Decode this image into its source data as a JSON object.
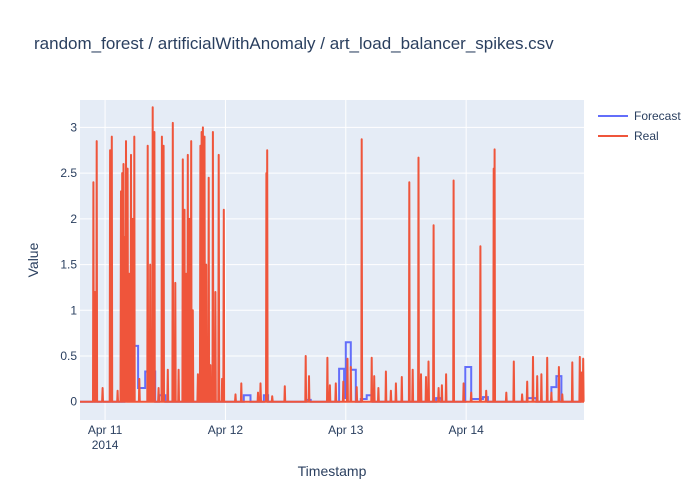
{
  "chart_data": {
    "type": "line",
    "title": "random_forest / artificialWithAnomaly / art_load_balancer_spikes.csv",
    "xlabel": "Timestamp",
    "ylabel": "Value",
    "xlim": [
      "2014-04-10T19:00",
      "2014-04-14T23:30"
    ],
    "ylim": [
      -0.2,
      3.3
    ],
    "x_ticks": [
      {
        "value": "2014-04-11T00:00",
        "label": "Apr 11",
        "sublabel": "2014"
      },
      {
        "value": "2014-04-12T00:00",
        "label": "Apr 12",
        "sublabel": ""
      },
      {
        "value": "2014-04-13T00:00",
        "label": "Apr 13",
        "sublabel": ""
      },
      {
        "value": "2014-04-14T00:00",
        "label": "Apr 14",
        "sublabel": ""
      }
    ],
    "y_ticks": [
      0,
      0.5,
      1,
      1.5,
      2,
      2.5,
      3
    ],
    "grid": true,
    "legend_position": "top-right",
    "colors": {
      "forecast": "#636efa",
      "real": "#ef553b",
      "plot_bg": "#e5ecf6",
      "grid": "#ffffff",
      "text": "#2a3f5f"
    },
    "series": [
      {
        "name": "Forecast",
        "color": "#636efa",
        "points": [
          [
            "2014-04-10T19:00",
            0
          ],
          [
            "2014-04-11T03:50",
            0
          ],
          [
            "2014-04-11T03:50",
            0.19
          ],
          [
            "2014-04-11T04:50",
            0.19
          ],
          [
            "2014-04-11T04:50",
            0.06
          ],
          [
            "2014-04-11T05:50",
            0.06
          ],
          [
            "2014-04-11T05:50",
            0.61
          ],
          [
            "2014-04-11T06:35",
            0.61
          ],
          [
            "2014-04-11T06:35",
            0.15
          ],
          [
            "2014-04-11T08:00",
            0.15
          ],
          [
            "2014-04-11T08:00",
            0.33
          ],
          [
            "2014-04-11T10:00",
            0.33
          ],
          [
            "2014-04-11T10:00",
            0
          ],
          [
            "2014-04-11T10:45",
            0
          ],
          [
            "2014-04-11T10:45",
            0.07
          ],
          [
            "2014-04-11T12:00",
            0.07
          ],
          [
            "2014-04-11T12:00",
            0
          ],
          [
            "2014-04-12T03:40",
            0
          ],
          [
            "2014-04-12T03:40",
            0.07
          ],
          [
            "2014-04-12T05:00",
            0.07
          ],
          [
            "2014-04-12T05:00",
            0
          ],
          [
            "2014-04-12T07:40",
            0
          ],
          [
            "2014-04-12T07:40",
            0.07
          ],
          [
            "2014-04-12T08:30",
            0.07
          ],
          [
            "2014-04-12T08:30",
            0
          ],
          [
            "2014-04-12T16:00",
            0
          ],
          [
            "2014-04-12T16:00",
            0.02
          ],
          [
            "2014-04-12T17:00",
            0.02
          ],
          [
            "2014-04-12T17:00",
            0
          ],
          [
            "2014-04-12T22:40",
            0
          ],
          [
            "2014-04-12T22:40",
            0.36
          ],
          [
            "2014-04-12T23:40",
            0.36
          ],
          [
            "2014-04-12T23:40",
            0.04
          ],
          [
            "2014-04-13T00:00",
            0.04
          ],
          [
            "2014-04-13T00:00",
            0.65
          ],
          [
            "2014-04-13T01:00",
            0.65
          ],
          [
            "2014-04-13T01:00",
            0.35
          ],
          [
            "2014-04-13T02:00",
            0.35
          ],
          [
            "2014-04-13T02:00",
            0
          ],
          [
            "2014-04-13T03:00",
            0
          ],
          [
            "2014-04-13T03:00",
            0.03
          ],
          [
            "2014-04-13T04:10",
            0.03
          ],
          [
            "2014-04-13T04:10",
            0.07
          ],
          [
            "2014-04-13T05:20",
            0.07
          ],
          [
            "2014-04-13T05:20",
            0
          ],
          [
            "2014-04-13T18:00",
            0
          ],
          [
            "2014-04-13T18:00",
            0.04
          ],
          [
            "2014-04-13T19:00",
            0.04
          ],
          [
            "2014-04-13T19:00",
            0
          ],
          [
            "2014-04-13T23:50",
            0
          ],
          [
            "2014-04-13T23:50",
            0.38
          ],
          [
            "2014-04-14T01:00",
            0.38
          ],
          [
            "2014-04-14T01:00",
            0.03
          ],
          [
            "2014-04-14T03:20",
            0.03
          ],
          [
            "2014-04-14T03:20",
            0.05
          ],
          [
            "2014-04-14T04:20",
            0.05
          ],
          [
            "2014-04-14T04:20",
            0
          ],
          [
            "2014-04-14T12:10",
            0
          ],
          [
            "2014-04-14T12:10",
            0.04
          ],
          [
            "2014-04-14T14:00",
            0.04
          ],
          [
            "2014-04-14T14:00",
            0
          ],
          [
            "2014-04-14T17:00",
            0
          ],
          [
            "2014-04-14T17:00",
            0.16
          ],
          [
            "2014-04-14T18:00",
            0.16
          ],
          [
            "2014-04-14T18:00",
            0.28
          ],
          [
            "2014-04-14T19:00",
            0.28
          ],
          [
            "2014-04-14T19:00",
            0
          ],
          [
            "2014-04-14T22:45",
            0
          ],
          [
            "2014-04-14T22:45",
            0.05
          ],
          [
            "2014-04-14T23:30",
            0.05
          ]
        ]
      },
      {
        "name": "Real",
        "color": "#ef553b",
        "baseline": 0,
        "spikes": [
          [
            "2014-04-10T21:40",
            2.4
          ],
          [
            "2014-04-10T22:00",
            1.2
          ],
          [
            "2014-04-10T22:20",
            2.85
          ],
          [
            "2014-04-10T23:30",
            0.15
          ],
          [
            "2014-04-11T01:00",
            2.75
          ],
          [
            "2014-04-11T01:20",
            2.9
          ],
          [
            "2014-04-11T02:30",
            0.12
          ],
          [
            "2014-04-11T03:10",
            2.3
          ],
          [
            "2014-04-11T03:25",
            2.5
          ],
          [
            "2014-04-11T03:40",
            2.6
          ],
          [
            "2014-04-11T03:55",
            1.8
          ],
          [
            "2014-04-11T04:10",
            2.85
          ],
          [
            "2014-04-11T04:30",
            2.55
          ],
          [
            "2014-04-11T04:50",
            1.4
          ],
          [
            "2014-04-11T05:10",
            2.7
          ],
          [
            "2014-04-11T05:30",
            2.0
          ],
          [
            "2014-04-11T05:50",
            2.9
          ],
          [
            "2014-04-11T06:50",
            0.25
          ],
          [
            "2014-04-11T08:30",
            2.8
          ],
          [
            "2014-04-11T09:00",
            1.5
          ],
          [
            "2014-04-11T09:30",
            3.22
          ],
          [
            "2014-04-11T09:50",
            2.95
          ],
          [
            "2014-04-11T10:40",
            0.15
          ],
          [
            "2014-04-11T11:20",
            2.9
          ],
          [
            "2014-04-11T11:40",
            2.8
          ],
          [
            "2014-04-11T12:30",
            0.35
          ],
          [
            "2014-04-11T13:30",
            3.05
          ],
          [
            "2014-04-11T14:00",
            1.3
          ],
          [
            "2014-04-11T14:40",
            0.35
          ],
          [
            "2014-04-11T15:30",
            2.65
          ],
          [
            "2014-04-11T15:50",
            2.1
          ],
          [
            "2014-04-11T16:10",
            1.4
          ],
          [
            "2014-04-11T16:30",
            2.7
          ],
          [
            "2014-04-11T16:50",
            2.0
          ],
          [
            "2014-04-11T17:10",
            2.85
          ],
          [
            "2014-04-11T17:30",
            1.0
          ],
          [
            "2014-04-11T18:30",
            0.3
          ],
          [
            "2014-04-11T19:00",
            2.8
          ],
          [
            "2014-04-11T19:15",
            2.95
          ],
          [
            "2014-04-11T19:30",
            3.0
          ],
          [
            "2014-04-11T19:50",
            2.9
          ],
          [
            "2014-04-11T20:10",
            1.5
          ],
          [
            "2014-04-11T20:40",
            2.45
          ],
          [
            "2014-04-11T21:00",
            0.4
          ],
          [
            "2014-04-11T21:30",
            2.95
          ],
          [
            "2014-04-11T22:00",
            1.2
          ],
          [
            "2014-04-11T22:40",
            2.7
          ],
          [
            "2014-04-11T23:20",
            0.25
          ],
          [
            "2014-04-11T23:40",
            2.1
          ],
          [
            "2014-04-12T02:00",
            0.08
          ],
          [
            "2014-04-12T03:10",
            0.2
          ],
          [
            "2014-04-12T06:30",
            0.1
          ],
          [
            "2014-04-12T07:00",
            0.2
          ],
          [
            "2014-04-12T08:10",
            2.5
          ],
          [
            "2014-04-12T08:20",
            2.75
          ],
          [
            "2014-04-12T09:20",
            0.06
          ],
          [
            "2014-04-12T11:50",
            0.17
          ],
          [
            "2014-04-12T16:00",
            0.5
          ],
          [
            "2014-04-12T16:40",
            0.28
          ],
          [
            "2014-04-12T20:20",
            0.48
          ],
          [
            "2014-04-12T20:50",
            0.18
          ],
          [
            "2014-04-12T22:00",
            0.2
          ],
          [
            "2014-04-12T23:30",
            0.22
          ],
          [
            "2014-04-13T00:20",
            0.47
          ],
          [
            "2014-04-13T01:00",
            0.38
          ],
          [
            "2014-04-13T02:10",
            0.16
          ],
          [
            "2014-04-13T03:10",
            2.87
          ],
          [
            "2014-04-13T05:10",
            0.48
          ],
          [
            "2014-04-13T05:40",
            0.28
          ],
          [
            "2014-04-13T06:30",
            0.15
          ],
          [
            "2014-04-13T08:00",
            0.33
          ],
          [
            "2014-04-13T09:00",
            0.12
          ],
          [
            "2014-04-13T10:00",
            0.2
          ],
          [
            "2014-04-13T11:10",
            0.27
          ],
          [
            "2014-04-13T12:40",
            2.4
          ],
          [
            "2014-04-13T13:20",
            0.35
          ],
          [
            "2014-04-13T14:30",
            2.67
          ],
          [
            "2014-04-13T15:00",
            0.3
          ],
          [
            "2014-04-13T16:00",
            0.27
          ],
          [
            "2014-04-13T16:30",
            0.44
          ],
          [
            "2014-04-13T17:30",
            1.93
          ],
          [
            "2014-04-13T18:30",
            0.15
          ],
          [
            "2014-04-13T19:10",
            0.18
          ],
          [
            "2014-04-13T20:00",
            0.3
          ],
          [
            "2014-04-13T21:30",
            2.42
          ],
          [
            "2014-04-13T23:30",
            0.2
          ],
          [
            "2014-04-14T01:00",
            0.1
          ],
          [
            "2014-04-14T02:50",
            1.7
          ],
          [
            "2014-04-14T04:00",
            0.12
          ],
          [
            "2014-04-14T05:30",
            2.55
          ],
          [
            "2014-04-14T05:40",
            2.76
          ],
          [
            "2014-04-14T08:00",
            0.1
          ],
          [
            "2014-04-14T09:30",
            0.44
          ],
          [
            "2014-04-14T11:10",
            0.08
          ],
          [
            "2014-04-14T12:10",
            0.22
          ],
          [
            "2014-04-14T13:20",
            0.49
          ],
          [
            "2014-04-14T14:10",
            0.28
          ],
          [
            "2014-04-14T15:00",
            0.3
          ],
          [
            "2014-04-14T16:10",
            0.48
          ],
          [
            "2014-04-14T17:00",
            0.1
          ],
          [
            "2014-04-14T18:30",
            0.38
          ],
          [
            "2014-04-14T19:10",
            0.08
          ],
          [
            "2014-04-14T21:10",
            0.43
          ],
          [
            "2014-04-14T22:40",
            0.49
          ],
          [
            "2014-04-14T23:00",
            0.32
          ],
          [
            "2014-04-14T23:20",
            0.47
          ]
        ]
      }
    ]
  }
}
